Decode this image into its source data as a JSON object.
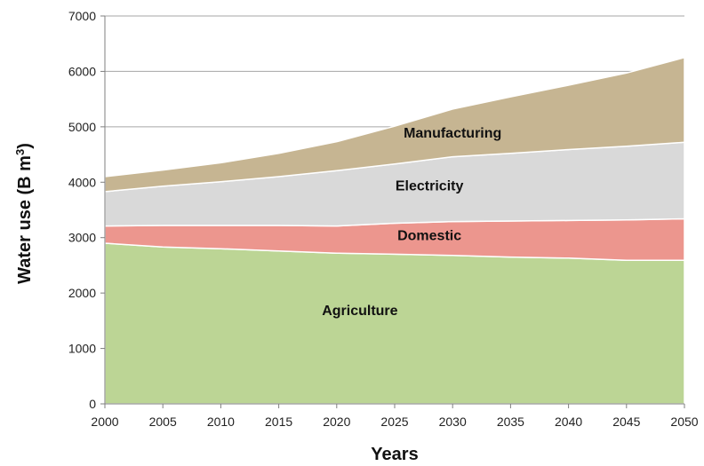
{
  "chart_data": {
    "type": "area",
    "stacked": true,
    "x": [
      2000,
      2005,
      2010,
      2015,
      2020,
      2025,
      2030,
      2035,
      2040,
      2045,
      2050
    ],
    "series": [
      {
        "name": "Agriculture",
        "values": [
          2900,
          2830,
          2800,
          2760,
          2720,
          2700,
          2680,
          2650,
          2630,
          2590,
          2590
        ],
        "color": "#bcd595"
      },
      {
        "name": "Domestic",
        "values": [
          310,
          390,
          420,
          460,
          490,
          560,
          610,
          650,
          680,
          730,
          750
        ],
        "color": "#ec968e"
      },
      {
        "name": "Electricity",
        "values": [
          620,
          710,
          790,
          880,
          1000,
          1070,
          1170,
          1220,
          1280,
          1330,
          1380
        ],
        "color": "#d9d9d9"
      },
      {
        "name": "Manufacturing",
        "values": [
          270,
          290,
          340,
          420,
          520,
          680,
          860,
          1020,
          1160,
          1320,
          1530
        ],
        "color": "#c6b592"
      }
    ],
    "xlabel": "Years",
    "ylabel": "Water use (B m",
    "ylabel_sup": "3",
    "ylabel_close": ")",
    "xlim": [
      2000,
      2050
    ],
    "ylim": [
      0,
      7000
    ],
    "xticks": [
      "2000",
      "2005",
      "2010",
      "2015",
      "2020",
      "2025",
      "2030",
      "2035",
      "2040",
      "2045",
      "2050"
    ],
    "yticks": [
      "0",
      "1000",
      "2000",
      "3000",
      "4000",
      "5000",
      "6000",
      "7000"
    ],
    "grid": "horizontal",
    "area_labels": [
      "Agriculture",
      "Domestic",
      "Electricity",
      "Manufacturing"
    ]
  }
}
